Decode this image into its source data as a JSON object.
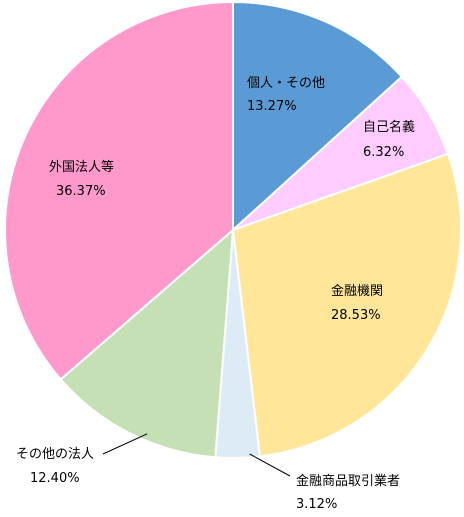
{
  "chart_data": {
    "type": "pie",
    "categories": [
      "個人・その他",
      "自己名義",
      "金融機関",
      "金融商品取引業者",
      "その他の法人",
      "外国法人等"
    ],
    "values": [
      13.27,
      6.32,
      28.53,
      3.12,
      12.4,
      36.37
    ],
    "value_labels": [
      "13.27%",
      "6.32%",
      "28.53%",
      "3.12%",
      "12.40%",
      "36.37%"
    ],
    "colors": [
      "#5b9bd5",
      "#ffccff",
      "#ffe699",
      "#ddebf7",
      "#c5e0b4",
      "#ff99cc"
    ],
    "start_angle": "12 o'clock",
    "direction": "clockwise",
    "legend": "none"
  }
}
